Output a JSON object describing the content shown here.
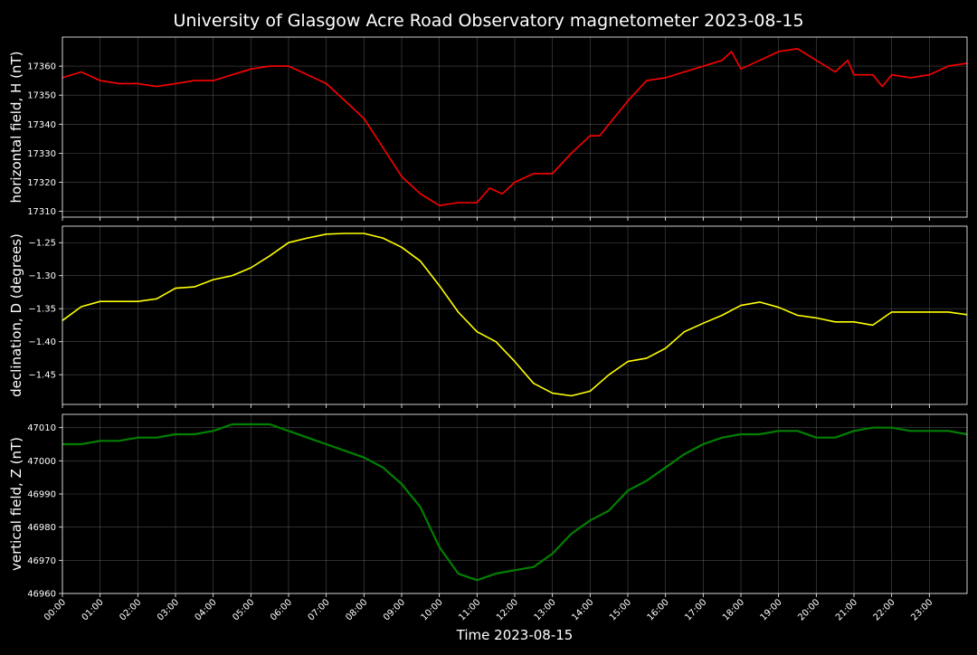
{
  "title": "University of Glasgow Acre Road Observatory magnetometer 2023-08-15",
  "xlabel": "Time 2023-08-15",
  "x_tick_labels": [
    "00:00",
    "01:00",
    "02:00",
    "03:00",
    "04:00",
    "05:00",
    "06:00",
    "07:00",
    "08:00",
    "09:00",
    "10:00",
    "11:00",
    "12:00",
    "13:00",
    "14:00",
    "15:00",
    "16:00",
    "17:00",
    "18:00",
    "19:00",
    "20:00",
    "21:00",
    "22:00",
    "23:00"
  ],
  "colors": {
    "background": "#000000",
    "H": "#ff0000",
    "D": "#ffff00",
    "Z": "#008000",
    "grid": "#888888"
  },
  "chart_data": [
    {
      "type": "line",
      "ylabel": "horizontal field, H (nT)",
      "xlim": [
        "00:00",
        "24:00"
      ],
      "ylim": [
        17308,
        17370
      ],
      "yticks": [
        17310,
        17320,
        17330,
        17340,
        17350,
        17360
      ],
      "grid": true,
      "series": [
        {
          "color": "#ff0000",
          "x": [
            "00:00",
            "00:30",
            "01:00",
            "01:30",
            "02:00",
            "02:30",
            "03:00",
            "03:30",
            "04:00",
            "04:30",
            "05:00",
            "05:30",
            "06:00",
            "06:30",
            "07:00",
            "07:30",
            "08:00",
            "08:30",
            "09:00",
            "09:30",
            "10:00",
            "10:30",
            "11:00",
            "11:20",
            "11:40",
            "12:00",
            "12:30",
            "13:00",
            "13:30",
            "14:00",
            "14:15",
            "14:30",
            "15:00",
            "15:30",
            "16:00",
            "16:30",
            "17:00",
            "17:30",
            "17:45",
            "18:00",
            "18:30",
            "19:00",
            "19:30",
            "20:00",
            "20:30",
            "20:50",
            "21:00",
            "21:30",
            "21:45",
            "22:00",
            "22:30",
            "23:00",
            "23:30",
            "24:00"
          ],
          "y": [
            17356,
            17358,
            17355,
            17354,
            17354,
            17353,
            17354,
            17355,
            17355,
            17357,
            17359,
            17360,
            17360,
            17357,
            17354,
            17348,
            17342,
            17332,
            17322,
            17316,
            17312,
            17313,
            17313,
            17318,
            17316,
            17320,
            17323,
            17323,
            17330,
            17336,
            17336,
            17340,
            17348,
            17355,
            17356,
            17358,
            17360,
            17362,
            17365,
            17359,
            17362,
            17365,
            17366,
            17362,
            17358,
            17362,
            17357,
            17357,
            17353,
            17357,
            17356,
            17357,
            17360,
            17361
          ]
        }
      ]
    },
    {
      "type": "line",
      "ylabel": "declination, D (degrees)",
      "xlim": [
        "00:00",
        "24:00"
      ],
      "ylim": [
        -1.495,
        -1.225
      ],
      "yticks": [
        -1.45,
        -1.4,
        -1.35,
        -1.3,
        -1.25
      ],
      "grid": true,
      "series": [
        {
          "color": "#ffff00",
          "x": [
            "00:00",
            "00:30",
            "01:00",
            "01:30",
            "02:00",
            "02:30",
            "03:00",
            "03:30",
            "04:00",
            "04:30",
            "05:00",
            "05:30",
            "06:00",
            "06:30",
            "07:00",
            "07:30",
            "08:00",
            "08:30",
            "09:00",
            "09:30",
            "10:00",
            "10:30",
            "11:00",
            "11:30",
            "12:00",
            "12:30",
            "13:00",
            "13:30",
            "14:00",
            "14:30",
            "15:00",
            "15:30",
            "16:00",
            "16:30",
            "17:00",
            "17:30",
            "18:00",
            "18:30",
            "19:00",
            "19:30",
            "20:00",
            "20:30",
            "21:00",
            "21:30",
            "22:00",
            "22:30",
            "23:00",
            "23:30",
            "24:00"
          ],
          "y": [
            -1.368,
            -1.347,
            -1.339,
            -1.339,
            -1.339,
            -1.335,
            -1.319,
            -1.317,
            -1.306,
            -1.3,
            -1.288,
            -1.27,
            -1.25,
            -1.243,
            -1.237,
            -1.236,
            -1.236,
            -1.243,
            -1.257,
            -1.278,
            -1.315,
            -1.355,
            -1.385,
            -1.4,
            -1.43,
            -1.463,
            -1.478,
            -1.482,
            -1.475,
            -1.45,
            -1.43,
            -1.425,
            -1.41,
            -1.385,
            -1.372,
            -1.36,
            -1.345,
            -1.34,
            -1.348,
            -1.36,
            -1.364,
            -1.37,
            -1.37,
            -1.375,
            -1.355,
            -1.355,
            -1.355,
            -1.355,
            -1.359
          ]
        }
      ]
    },
    {
      "type": "line",
      "ylabel": "vertical field, Z (nT)",
      "xlim": [
        "00:00",
        "24:00"
      ],
      "ylim": [
        46960,
        47014
      ],
      "yticks": [
        46960,
        46970,
        46980,
        46990,
        47000,
        47010
      ],
      "grid": true,
      "series": [
        {
          "color": "#008000",
          "x": [
            "00:00",
            "00:30",
            "01:00",
            "01:30",
            "02:00",
            "02:30",
            "03:00",
            "03:30",
            "04:00",
            "04:30",
            "05:00",
            "05:30",
            "06:00",
            "06:30",
            "07:00",
            "07:30",
            "08:00",
            "08:30",
            "09:00",
            "09:30",
            "10:00",
            "10:30",
            "11:00",
            "11:30",
            "12:00",
            "12:30",
            "13:00",
            "13:30",
            "14:00",
            "14:30",
            "15:00",
            "15:30",
            "16:00",
            "16:30",
            "17:00",
            "17:30",
            "18:00",
            "18:30",
            "19:00",
            "19:30",
            "20:00",
            "20:30",
            "21:00",
            "21:30",
            "22:00",
            "22:30",
            "23:00",
            "23:30",
            "24:00"
          ],
          "y": [
            47005,
            47005,
            47006,
            47006,
            47007,
            47007,
            47008,
            47008,
            47009,
            47011,
            47011,
            47011,
            47009,
            47007,
            47005,
            47003,
            47001,
            46998,
            46993,
            46986,
            46974,
            46966,
            46964,
            46966,
            46967,
            46968,
            46972,
            46978,
            46982,
            46985,
            46991,
            46994,
            46998,
            47002,
            47005,
            47007,
            47008,
            47008,
            47009,
            47009,
            47007,
            47007,
            47009,
            47010,
            47010,
            47009,
            47009,
            47009,
            47008
          ]
        }
      ]
    }
  ]
}
